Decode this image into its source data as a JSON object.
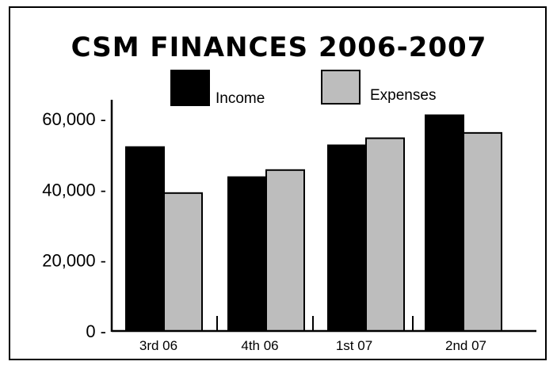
{
  "chart_data": {
    "type": "bar",
    "title": "CSM FINANCES 2006-2007",
    "xlabel": "",
    "ylabel": "",
    "categories": [
      "3rd 06",
      "4th 06",
      "1st 07",
      "2nd 07"
    ],
    "series": [
      {
        "name": "Income",
        "values": [
          52000,
          43500,
          52500,
          61000
        ],
        "color": "#000000"
      },
      {
        "name": "Expenses",
        "values": [
          39000,
          45500,
          54500,
          56000
        ],
        "color": "#bdbdbd"
      }
    ],
    "ylim": [
      0,
      65000
    ],
    "y_ticks": [
      0,
      20000,
      40000,
      60000
    ],
    "y_tick_labels": [
      "0 -",
      "20,000 -",
      "40,000 -",
      "60,000 -"
    ],
    "grid": false,
    "legend_position": "top"
  }
}
